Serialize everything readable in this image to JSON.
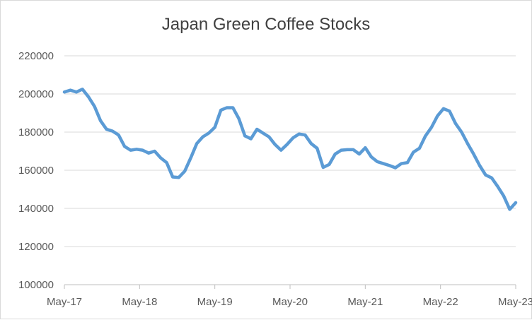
{
  "chart_data": {
    "type": "line",
    "title": "Japan Green Coffee Stocks",
    "xlabel": "",
    "ylabel": "",
    "x_ticks": [
      "May-17",
      "May-18",
      "May-19",
      "May-20",
      "May-21",
      "May-22",
      "May-23"
    ],
    "y_ticks": [
      "100000",
      "120000",
      "140000",
      "160000",
      "180000",
      "200000",
      "220000"
    ],
    "ylim": [
      100000,
      220000
    ],
    "grid": "horizontal",
    "legend": "none",
    "line_color": "#5b9bd5",
    "series": [
      {
        "values": [
          201000,
          202000,
          201000,
          202500,
          198500,
          193500,
          186000,
          181500,
          180500,
          178500,
          172500,
          170500,
          171000,
          170500,
          169000,
          170000,
          166500,
          164000,
          156500,
          156200,
          159500,
          166500,
          174000,
          177500,
          179500,
          182500,
          191500,
          192800,
          192800,
          187000,
          178000,
          176500,
          181500,
          179500,
          177500,
          173500,
          170500,
          173500,
          177000,
          179000,
          178500,
          174000,
          171500,
          161500,
          163000,
          168500,
          170500,
          170800,
          170800,
          168500,
          171800,
          167000,
          164500,
          163500,
          162500,
          161300,
          163500,
          164000,
          169500,
          171500,
          178000,
          182500,
          188500,
          192300,
          191000,
          184500,
          180000,
          174000,
          168500,
          162500,
          157500,
          156000,
          151500,
          146500,
          139500,
          143000
        ]
      }
    ]
  }
}
